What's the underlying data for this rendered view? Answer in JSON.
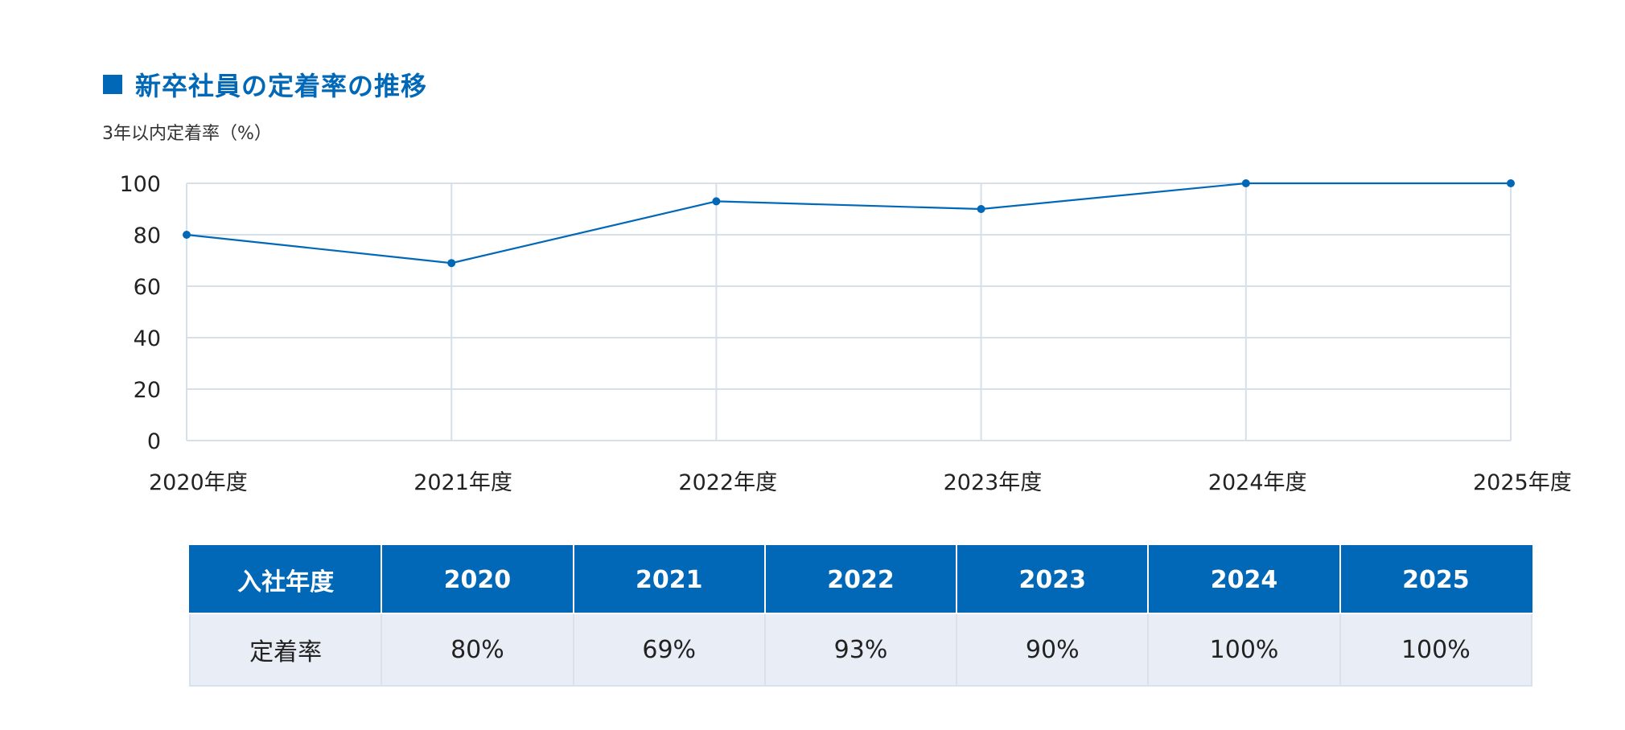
{
  "heading": "新卒社員の定着率の推移",
  "chart_data": {
    "type": "line",
    "title": "新卒社員の定着率の推移",
    "ylabel": "3年以内定着率（%）",
    "xlabel": "",
    "categories": [
      "2020年度",
      "2021年度",
      "2022年度",
      "2023年度",
      "2024年度",
      "2025年度"
    ],
    "values": [
      80,
      69,
      93,
      90,
      100,
      100
    ],
    "ylim": [
      0,
      100
    ],
    "yticks": [
      0,
      20,
      40,
      60,
      80,
      100
    ],
    "grid": true,
    "legend": "none",
    "color": "#0068b7",
    "grid_color": "#d6dfea"
  },
  "table": {
    "header_label": "入社年度",
    "years": [
      "2020",
      "2021",
      "2022",
      "2023",
      "2024",
      "2025"
    ],
    "row_label": "定着率",
    "rates": [
      "80%",
      "69%",
      "93%",
      "90%",
      "100%",
      "100%"
    ]
  },
  "colors": {
    "accent": "#0068b7",
    "table_body": "#e9eef6",
    "grid": "#d6dfea"
  }
}
